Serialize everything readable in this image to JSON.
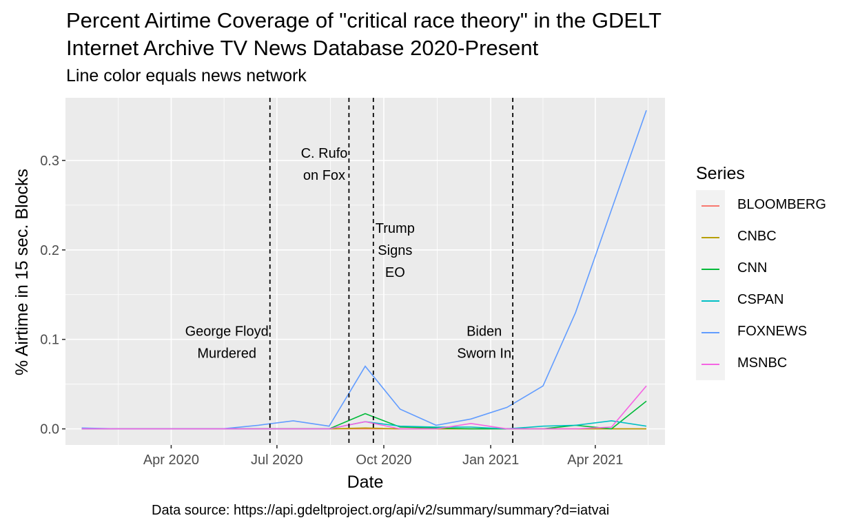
{
  "chart_data": {
    "type": "line",
    "title_line1": "Percent Airtime Coverage of \"critical race theory\" in the GDELT",
    "title_line2": "Internet Archive TV News Database 2020-Present",
    "subtitle": "Line color equals news network",
    "xlabel": "Date",
    "ylabel": "% Airtime in 15 sec. Blocks",
    "caption": "Data source: https://api.gdeltproject.org/api/v2/summary/summary?d=iatvai",
    "legend_title": "Series",
    "x": [
      "2020-01-15",
      "2020-02-15",
      "2020-03-15",
      "2020-04-15",
      "2020-05-15",
      "2020-06-15",
      "2020-07-15",
      "2020-08-15",
      "2020-09-15",
      "2020-10-15",
      "2020-11-15",
      "2020-12-15",
      "2021-01-15",
      "2021-02-15",
      "2021-03-15",
      "2021-04-15",
      "2021-05-15"
    ],
    "xlim": [
      "2020-01-01",
      "2021-05-31"
    ],
    "ylim": [
      -0.018,
      0.37
    ],
    "x_ticks": [
      {
        "date": "2020-04-01",
        "label": "Apr 2020"
      },
      {
        "date": "2020-07-01",
        "label": "Jul 2020"
      },
      {
        "date": "2020-10-01",
        "label": "Oct 2020"
      },
      {
        "date": "2021-01-01",
        "label": "Jan 2021"
      },
      {
        "date": "2021-04-01",
        "label": "Apr 2021"
      }
    ],
    "y_ticks": [
      {
        "value": 0.0,
        "label": "0.0"
      },
      {
        "value": 0.1,
        "label": "0.1"
      },
      {
        "value": 0.2,
        "label": "0.2"
      },
      {
        "value": 0.3,
        "label": "0.3"
      }
    ],
    "series": [
      {
        "name": "BLOOMBERG",
        "color": "#F8766D",
        "values": [
          0,
          0,
          0,
          0,
          0,
          0,
          0,
          0,
          0,
          0,
          0,
          0,
          0,
          0,
          0,
          0,
          0
        ]
      },
      {
        "name": "CNBC",
        "color": "#B79F00",
        "values": [
          0,
          0,
          0,
          0,
          0,
          0,
          0,
          0,
          0.001,
          0,
          0,
          0,
          0,
          0,
          0,
          0,
          0
        ]
      },
      {
        "name": "CNN",
        "color": "#00BA38",
        "values": [
          0,
          0,
          0,
          0,
          0,
          0,
          0,
          0,
          0.017,
          0.002,
          0.001,
          0,
          0,
          0,
          0.004,
          0,
          0.031
        ]
      },
      {
        "name": "CSPAN",
        "color": "#00BFC4",
        "values": [
          0,
          0,
          0,
          0,
          0,
          0,
          0,
          0,
          0.008,
          0.003,
          0.002,
          0.002,
          0,
          0.003,
          0.004,
          0.009,
          0.003
        ]
      },
      {
        "name": "FOXNEWS",
        "color": "#619CFF",
        "values": [
          0.001,
          0,
          0,
          0,
          0,
          0.004,
          0.009,
          0.003,
          0.07,
          0.022,
          0.004,
          0.011,
          0.024,
          0.048,
          0.13,
          0.245,
          0.356
        ]
      },
      {
        "name": "MSNBC",
        "color": "#F564E3",
        "values": [
          0,
          0,
          0,
          0,
          0,
          0,
          0,
          0,
          0.008,
          0,
          0,
          0.006,
          0,
          0,
          0,
          0.002,
          0.048
        ]
      }
    ],
    "events": [
      {
        "date": "2020-06-25",
        "label_lines": [
          "George Floyd",
          "Murdered"
        ],
        "label_value": 0.097
      },
      {
        "date": "2020-09-01",
        "label_lines": [
          "C. Rufo",
          "on Fox"
        ],
        "label_value": 0.296
      },
      {
        "date": "2020-09-22",
        "label_lines": [
          "Trump",
          "Signs",
          "EO"
        ],
        "label_value": 0.2
      },
      {
        "date": "2021-01-20",
        "label_lines": [
          "Biden",
          "Sworn In"
        ],
        "label_value": 0.097
      }
    ]
  }
}
